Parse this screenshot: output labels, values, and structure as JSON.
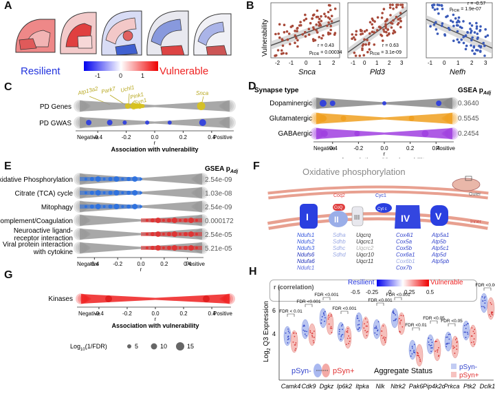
{
  "panels": {
    "A": {
      "label": "A",
      "resilient": "Resilient",
      "vulnerable": "Vulnerable",
      "ticks": [
        "-1",
        "0",
        "1"
      ]
    },
    "B": {
      "label": "B",
      "ylabel": "Vulnerability",
      "plots": [
        {
          "gene": "Snca",
          "r": "r = 0.43",
          "p": "p",
          "psub": "FDR",
          "pval": "= 0.00034",
          "xticks": [
            "-2",
            "-1",
            "0",
            "1",
            "2"
          ]
        },
        {
          "gene": "Pld3",
          "r": "r = 0.63",
          "p": "p",
          "psub": "FDR",
          "pval": "= 3.1e-09",
          "xticks": [
            "-1",
            "0",
            "1",
            "2",
            "3"
          ]
        },
        {
          "gene": "Nefh",
          "r": "r = -0.57",
          "p": "p",
          "psub": "FDR",
          "pval": "= 1.9e-07",
          "xticks": [
            "-1",
            "0",
            "1",
            "2",
            "3"
          ]
        }
      ]
    },
    "C": {
      "label": "C",
      "rows": [
        "PD Genes",
        "PD GWAS"
      ],
      "genes": [
        "Atp13a2",
        "Park7",
        "Uchl1",
        "Pink1",
        "Syn1",
        "Snca"
      ],
      "xticks": [
        "-0.4",
        "-0.2",
        "0.0",
        "0.2",
        "0.4"
      ],
      "neg": "Negative",
      "pos": "Positive",
      "r": "r",
      "xlabel": "Association with vulnerability"
    },
    "D": {
      "label": "D",
      "header": "Synapse type",
      "gsea": "GSEA p",
      "gsea_sub": "Adj",
      "rows": [
        {
          "name": "Dopaminergic",
          "p": "0.3640"
        },
        {
          "name": "Glutamatergic",
          "p": "0.5545"
        },
        {
          "name": "GABAergic",
          "p": "0.2454"
        }
      ],
      "xticks": [
        "-0.4",
        "-0.2",
        "0.0",
        "0.2",
        "0.4"
      ],
      "neg": "Negative",
      "pos": "Positive",
      "r": "r",
      "xlabel": "Association with vulnerability"
    },
    "E": {
      "label": "E",
      "gsea": "GSEA p",
      "gsea_sub": "Adj",
      "rows": [
        {
          "name": "Oxidative Phosphorylation",
          "p": "2.54e-09"
        },
        {
          "name": "Citrate (TCA) cycle",
          "p": "1.03e-08"
        },
        {
          "name": "Mitophagy",
          "p": "2.54e-09"
        },
        {
          "name": "Complement/Coagulation",
          "p": "0.000172"
        },
        {
          "name": "Neuroactive ligand-",
          "name2": "receptor interaction",
          "p": "2.54e-05"
        },
        {
          "name": "Viral protein interaction",
          "name2": "with cytokine",
          "p": "5.21e-05"
        }
      ],
      "xticks": [
        "-0.4",
        "-0.2",
        "0.0",
        "0.2",
        "0.4"
      ],
      "neg": "Negative",
      "pos": "Positive",
      "r": "r",
      "xlabel": "Association with vulnerability"
    },
    "F": {
      "label": "F",
      "title": "Oxidative phosphorylation",
      "outer": "Outer",
      "inner": "Inner",
      "complexes": [
        "I",
        "II",
        "III",
        "IV",
        "V"
      ],
      "coq": "Coq2",
      "cyc": "Cyc1",
      "cytc": "Cyt c",
      "c1": [
        "Ndufs1",
        "Ndufs2",
        "Ndufs3",
        "Ndufs6",
        "Ndufa6",
        "Ndufc1"
      ],
      "c2": [
        "Sdha",
        "Sdhb",
        "Sdhc",
        "Sdhd"
      ],
      "c3": [
        "Uqcrq",
        "Uqcrc1",
        "Uqcrc2",
        "Uqcr10",
        "Uqcr11"
      ],
      "c4": [
        "Cox4i1",
        "Cox5a",
        "Cox5b",
        "Cox6a1",
        "Cox6b1",
        "Cox7b"
      ],
      "c5": [
        "Atp5a1",
        "Atp5b",
        "Atp5c1",
        "Atp5d",
        "Atp5pb"
      ],
      "legend_title": "r (correlation)",
      "resilient": "Resilient",
      "vulnerable": "Vulnerable",
      "ticks": [
        "-0.5",
        "-0.25",
        "0",
        "0.25",
        "0.5"
      ]
    },
    "G": {
      "label": "G",
      "row": "Kinases",
      "xticks": [
        "-0.4",
        "-0.2",
        "0.0",
        "0.2",
        "0.4"
      ],
      "neg": "Negative",
      "pos": "Positive",
      "r": "r",
      "xlabel": "Association with vulnerability",
      "size_title": "Log",
      "size_sub": "10",
      "size_rest": "(1/FDR)",
      "sizes": [
        "5",
        "10",
        "15"
      ]
    },
    "H": {
      "label": "H",
      "ylabel": "Log",
      "ylabel_sub": "2",
      "ylabel_rest": " Q3 Expression",
      "yticks": [
        "4",
        "6"
      ],
      "genes": [
        "Camk4",
        "Cdk9",
        "Dgkz",
        "Ip6k2",
        "Itpka",
        "Nlk",
        "Ntrk2",
        "Pak6",
        "Pip4k2c",
        "Prkca",
        "Ptk2",
        "Dclk1"
      ],
      "fdr": [
        "FDR < 0.01",
        "FDR <0.001",
        "FDR <0.001",
        "FDR <0.001",
        "FDR <0.001",
        "FDR <0.001",
        "FDR <0.01",
        "FDR <0.05",
        "FDR <0.05",
        "FDR <0.001"
      ],
      "legend_title": "Aggregate Status",
      "neg": "pSyn-",
      "pos": "pSyn+"
    }
  }
}
